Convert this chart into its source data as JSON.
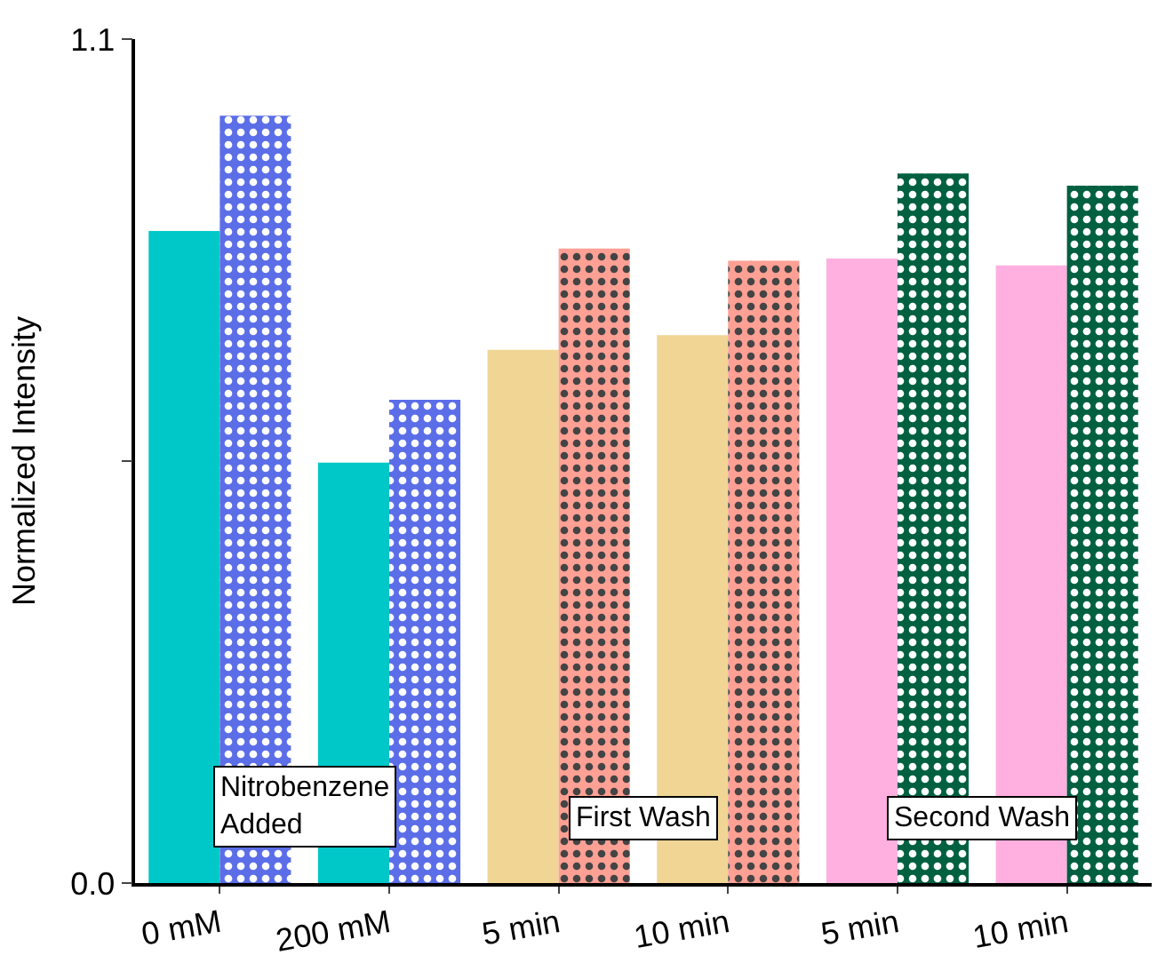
{
  "chart_data": {
    "type": "bar",
    "ylabel": "Normalized Intensity",
    "categories": [
      "0 mM",
      "200 mM",
      "5 min",
      "10 min",
      "5 min",
      "10 min"
    ],
    "series": [
      {
        "colors": [
          "#00c8c8",
          "#00c8c8",
          "#f0d595",
          "#f0d595",
          "#ffb0e0",
          "#ffb0e0"
        ],
        "values": [
          0.85,
          0.548,
          0.695,
          0.714,
          0.814,
          0.805
        ]
      },
      {
        "colors": [
          "#5b6ee8",
          "#5b6ee8",
          "#ffa095",
          "#ffa095",
          "#006040",
          "#006040"
        ],
        "values": [
          1.0,
          0.63,
          0.827,
          0.811,
          0.925,
          0.909
        ]
      }
    ],
    "ylim": [
      0,
      1.1
    ],
    "yticks": [
      {
        "value": 0,
        "label": "0.0"
      },
      {
        "value": 0.55,
        "label": null
      },
      {
        "value": 1.1,
        "label": "1.1"
      }
    ],
    "annotations": [
      "Nitrobenzene\nAdded",
      "First Wash",
      "Second Wash"
    ]
  }
}
